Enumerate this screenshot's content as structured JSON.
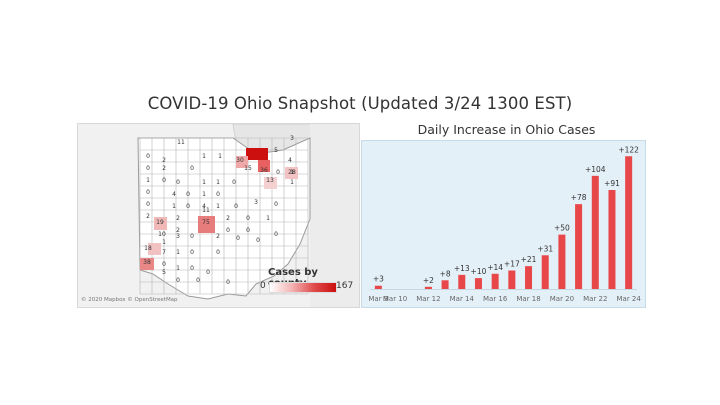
{
  "slide": {
    "title": "COVID-19 Ohio Snapshot (Updated 3/24 1300 EST)"
  },
  "map": {
    "legend_title": "Cases by county",
    "legend_min": "0",
    "legend_max": "167",
    "credit": "© 2020 Mapbox © OpenStreetMap",
    "county_labels": [
      "11",
      "3",
      "0",
      "2",
      "1",
      "1",
      "30",
      "5",
      "4",
      "2",
      "0",
      "0",
      "0",
      "15",
      "36",
      "0",
      "1",
      "1",
      "0",
      "1",
      "1",
      "0",
      "28",
      "0",
      "4",
      "0",
      "1",
      "0",
      "13",
      "1",
      "0",
      "1",
      "0",
      "4",
      "1",
      "0",
      "3",
      "0",
      "2",
      "2",
      "11",
      "2",
      "0",
      "1",
      "19",
      "2",
      "75",
      "0",
      "0",
      "0",
      "10",
      "3",
      "0",
      "2",
      "0",
      "0",
      "1",
      "18",
      "7",
      "1",
      "0",
      "0",
      "38",
      "0",
      "1",
      "0",
      "0",
      "5",
      "0",
      "0",
      "0"
    ]
  },
  "chart_data": {
    "type": "bar",
    "title": "Daily Increase in Ohio Cases",
    "color": "#e8474a",
    "background": "#e4f0f8",
    "x": [
      "Mar 9",
      "Mar 10",
      "Mar 11",
      "Mar 12",
      "Mar 13",
      "Mar 14",
      "Mar 15",
      "Mar 16",
      "Mar 17",
      "Mar 18",
      "Mar 19",
      "Mar 20",
      "Mar 21",
      "Mar 22",
      "Mar 23",
      "Mar 24"
    ],
    "values": [
      3,
      0,
      0,
      2,
      8,
      13,
      10,
      14,
      17,
      21,
      31,
      50,
      78,
      104,
      91,
      122
    ],
    "data_labels": [
      "+3",
      "",
      "",
      "+2",
      "+8",
      "+13",
      "+10",
      "+14",
      "+17",
      "+21",
      "+31",
      "+50",
      "+78",
      "+104",
      "+91",
      "+122"
    ],
    "tick_labels": [
      "Mar 9",
      "Mar 10",
      "Mar 12",
      "Mar 14",
      "Mar 16",
      "Mar 18",
      "Mar 20",
      "Mar 22",
      "Mar 24"
    ],
    "ylim": [
      0,
      125
    ]
  }
}
